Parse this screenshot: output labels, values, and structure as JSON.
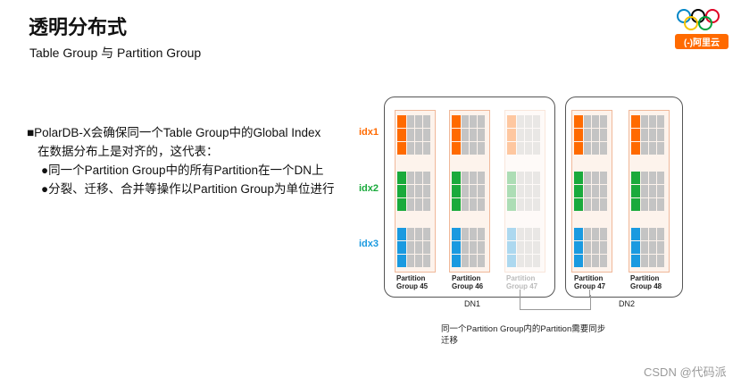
{
  "header": {
    "title": "透明分布式",
    "subtitle": "Table Group 与 Partition Group"
  },
  "logo": {
    "brand": "(-)阿里云",
    "icon": "olympic-rings-icon",
    "colors": [
      "#0085c7",
      "#000000",
      "#df0024",
      "#f4c300",
      "#009f3d"
    ]
  },
  "content": {
    "bullet_main": "■PolarDB-X会确保同一个Table Group中的Global Index",
    "bullet_main_cont": "在数据分布上是对齐的，这代表：",
    "sub_items": [
      "●同一个Partition Group中的所有Partition在一个DN上",
      "●分裂、迁移、合并等操作以Partition Group为单位进行"
    ]
  },
  "diagram": {
    "index_labels": [
      {
        "text": "idx1",
        "color": "#ff6a00"
      },
      {
        "text": "idx2",
        "color": "#1aaa3c"
      },
      {
        "text": "idx3",
        "color": "#1a9ae0"
      }
    ],
    "dn_labels": [
      "DN1",
      "DN2"
    ],
    "groups": [
      {
        "line1": "Partition",
        "line2": "Group 45",
        "faded": false
      },
      {
        "line1": "Partition",
        "line2": "Group 46",
        "faded": false
      },
      {
        "line1": "Partition",
        "line2": "Group 47",
        "faded": true
      },
      {
        "line1": "Partition",
        "line2": "Group 47",
        "faded": false
      },
      {
        "line1": "Partition",
        "line2": "Group 48",
        "faded": false
      }
    ],
    "note": "同一个Partition Group内的Partition需要同步迁移"
  },
  "watermark": "CSDN @代码派"
}
